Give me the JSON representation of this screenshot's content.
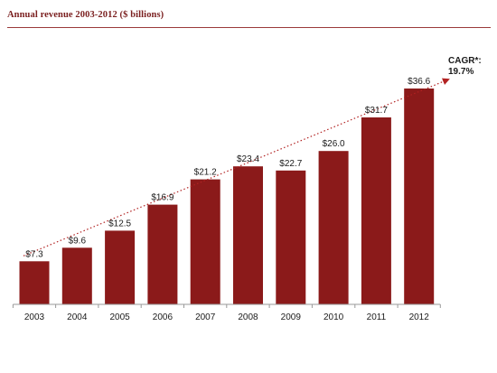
{
  "title": "Annual revenue 2003-2012 ($ billions)",
  "colors": {
    "bar": "#8b1a1a",
    "title": "#7a1f1f",
    "trend": "#b22222",
    "axis": "#999999"
  },
  "chart_data": {
    "type": "bar",
    "title": "Annual revenue 2003-2012 ($ billions)",
    "xlabel": "",
    "ylabel": "",
    "categories": [
      "2003",
      "2004",
      "2005",
      "2006",
      "2007",
      "2008",
      "2009",
      "2010",
      "2011",
      "2012"
    ],
    "values": [
      7.3,
      9.6,
      12.5,
      16.9,
      21.2,
      23.4,
      22.7,
      26.0,
      31.7,
      36.6
    ],
    "value_labels": [
      "$7.3",
      "$9.6",
      "$12.5",
      "$16.9",
      "$21.2",
      "$23.4",
      "$22.7",
      "$26.0",
      "$31.7",
      "$36.6"
    ],
    "ylim": [
      0,
      38
    ],
    "grid": false,
    "legend": "none",
    "annotation": {
      "line1": "CAGR*:",
      "line2": "19.7%",
      "trend_line": "dotted arrow from 2003 to 2012"
    }
  }
}
